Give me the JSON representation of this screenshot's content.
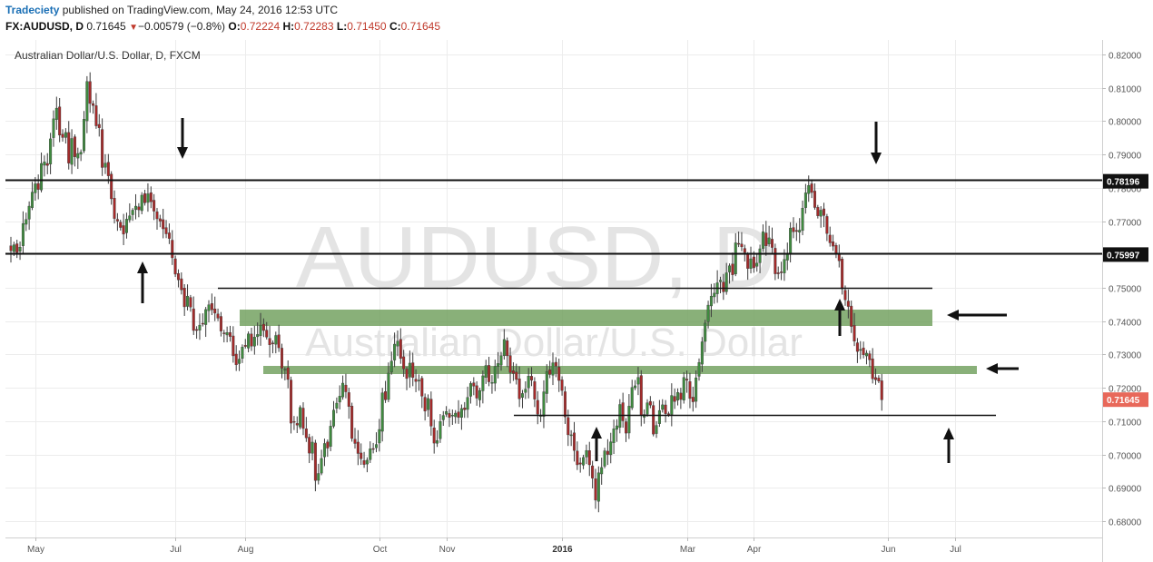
{
  "header": {
    "author": "Tradeciety",
    "published_text": "published on TradingView.com, May 24, 2016 12:53 UTC",
    "symbol": "FX:AUDUSD, D",
    "last": "0.71645",
    "change_arrow": "▼",
    "change": "−0.00579 (−0.8%)",
    "o_label": "O:",
    "o_value": "0.72224",
    "h_label": "H:",
    "h_value": "0.72283",
    "l_label": "L:",
    "l_value": "0.71450",
    "c_label": "C:",
    "c_value": "0.71645"
  },
  "colors": {
    "up": "#3f8b3f",
    "down": "#a52a2a",
    "zone": "#6f9f5c",
    "grid": "#ececec",
    "current_price_bg": "#e8685a"
  },
  "chart_data": {
    "type": "candlestick",
    "title": "Australian Dollar/U.S. Dollar, D, FXCM",
    "watermark_line1": "AUDUSD, D",
    "watermark_line2": "Australian Dollar/U.S. Dollar",
    "y_ticks": [
      "0.82000",
      "0.81000",
      "0.80000",
      "0.79000",
      "0.78000",
      "0.77000",
      "0.76000",
      "0.75000",
      "0.74000",
      "0.73000",
      "0.72000",
      "0.71000",
      "0.70000",
      "0.69000",
      "0.68000"
    ],
    "ylim": [
      0.675,
      0.8235
    ],
    "x_ticks": [
      {
        "label": "May",
        "bar": 8,
        "bold": false
      },
      {
        "label": "Jul",
        "bar": 54,
        "bold": false
      },
      {
        "label": "Aug",
        "bar": 77,
        "bold": false
      },
      {
        "label": "Oct",
        "bar": 121,
        "bold": false
      },
      {
        "label": "Nov",
        "bar": 143,
        "bold": false
      },
      {
        "label": "2016",
        "bar": 181,
        "bold": true
      },
      {
        "label": "Mar",
        "bar": 222,
        "bold": false
      },
      {
        "label": "Apr",
        "bar": 244,
        "bold": false
      },
      {
        "label": "Jun",
        "bar": 288,
        "bold": false
      },
      {
        "label": "Jul",
        "bar": 310,
        "bold": false
      }
    ],
    "closes": [
      0.7611,
      0.7629,
      0.7606,
      0.7622,
      0.7693,
      0.7705,
      0.7745,
      0.7787,
      0.7812,
      0.7795,
      0.7873,
      0.7878,
      0.7867,
      0.7947,
      0.8007,
      0.8039,
      0.7958,
      0.7951,
      0.7966,
      0.7874,
      0.7948,
      0.7893,
      0.7903,
      0.7907,
      0.8006,
      0.8119,
      0.8053,
      0.8047,
      0.7986,
      0.798,
      0.7861,
      0.7874,
      0.7836,
      0.7767,
      0.7708,
      0.77,
      0.7681,
      0.7661,
      0.7706,
      0.7716,
      0.7733,
      0.7745,
      0.7734,
      0.7778,
      0.7755,
      0.7782,
      0.7758,
      0.773,
      0.7707,
      0.77,
      0.7677,
      0.7662,
      0.7648,
      0.759,
      0.7541,
      0.7524,
      0.7494,
      0.7443,
      0.7475,
      0.7442,
      0.7372,
      0.7372,
      0.7388,
      0.7391,
      0.7435,
      0.7449,
      0.7434,
      0.7424,
      0.7409,
      0.737,
      0.7363,
      0.7366,
      0.7354,
      0.7296,
      0.7269,
      0.7286,
      0.7322,
      0.7324,
      0.7362,
      0.7325,
      0.7352,
      0.736,
      0.7388,
      0.7372,
      0.7352,
      0.7329,
      0.7333,
      0.7357,
      0.732,
      0.7259,
      0.7256,
      0.7225,
      0.7094,
      0.7099,
      0.7088,
      0.7141,
      0.7078,
      0.705,
      0.7004,
      0.7037,
      0.6922,
      0.6943,
      0.6988,
      0.7033,
      0.7019,
      0.7085,
      0.7133,
      0.7154,
      0.7175,
      0.7214,
      0.7188,
      0.7144,
      0.7048,
      0.7033,
      0.7003,
      0.6987,
      0.697,
      0.6983,
      0.7017,
      0.7016,
      0.703,
      0.7075,
      0.7185,
      0.7164,
      0.7244,
      0.728,
      0.7331,
      0.734,
      0.7288,
      0.7257,
      0.7228,
      0.7274,
      0.7231,
      0.7219,
      0.7223,
      0.7175,
      0.713,
      0.7168,
      0.7085,
      0.7034,
      0.7042,
      0.7099,
      0.7117,
      0.7129,
      0.7111,
      0.7118,
      0.7124,
      0.7111,
      0.7138,
      0.7134,
      0.7171,
      0.7213,
      0.7205,
      0.7169,
      0.7192,
      0.7236,
      0.7267,
      0.7218,
      0.7216,
      0.7264,
      0.7273,
      0.7296,
      0.7345,
      0.7296,
      0.7246,
      0.7243,
      0.7225,
      0.7167,
      0.7183,
      0.7196,
      0.7235,
      0.7223,
      0.7166,
      0.7121,
      0.7117,
      0.7188,
      0.7249,
      0.724,
      0.7275,
      0.7265,
      0.7222,
      0.7192,
      0.7113,
      0.7059,
      0.7059,
      0.7012,
      0.6969,
      0.6971,
      0.6991,
      0.7012,
      0.6969,
      0.6929,
      0.6863,
      0.6945,
      0.6961,
      0.7011,
      0.7,
      0.7038,
      0.7077,
      0.7086,
      0.715,
      0.7101,
      0.7064,
      0.7145,
      0.7201,
      0.7206,
      0.7231,
      0.7117,
      0.712,
      0.7155,
      0.7148,
      0.7061,
      0.7087,
      0.7132,
      0.7149,
      0.7122,
      0.7122,
      0.7177,
      0.7159,
      0.7186,
      0.7165,
      0.7231,
      0.7223,
      0.7168,
      0.7158,
      0.723,
      0.7276,
      0.7338,
      0.7394,
      0.7448,
      0.7475,
      0.7484,
      0.7515,
      0.7523,
      0.7488,
      0.7545,
      0.7566,
      0.7539,
      0.7635,
      0.7633,
      0.7623,
      0.7606,
      0.7558,
      0.7587,
      0.756,
      0.7574,
      0.7617,
      0.7668,
      0.7626,
      0.765,
      0.7621,
      0.7542,
      0.7542,
      0.7546,
      0.7585,
      0.7603,
      0.7679,
      0.7668,
      0.7669,
      0.7673,
      0.7739,
      0.7785,
      0.7807,
      0.7786,
      0.7741,
      0.7716,
      0.7733,
      0.7717,
      0.7663,
      0.7635,
      0.7625,
      0.7602,
      0.7581,
      0.7497,
      0.7464,
      0.7444,
      0.7384,
      0.734,
      0.7309,
      0.7315,
      0.7299,
      0.7304,
      0.7284,
      0.7227,
      0.7224,
      0.722,
      0.7164
    ]
  },
  "levels": [
    {
      "label": "0.78196",
      "price": 0.78196,
      "bg": "#111111",
      "fg": "#ffffff"
    },
    {
      "label": "0.75997",
      "price": 0.75997,
      "bg": "#111111",
      "fg": "#ffffff"
    },
    {
      "label": "0.71645",
      "price": 0.71645,
      "bg": "#e8685a",
      "fg": "#ffffff"
    }
  ]
}
